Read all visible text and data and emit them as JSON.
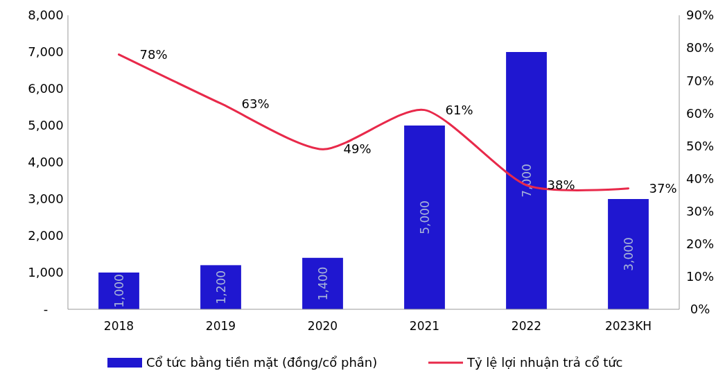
{
  "chart_data": {
    "type": "bar",
    "categories": [
      "2018",
      "2019",
      "2020",
      "2021",
      "2022",
      "2023KH"
    ],
    "series": [
      {
        "name": "Cổ tức bằng tiền mặt (đồng/cổ phần)",
        "color": "#1f17d0",
        "values": [
          1000,
          1200,
          1400,
          5000,
          7000,
          3000
        ],
        "value_labels": [
          "1,000",
          "1,200",
          "1,400",
          "5,000",
          "7,000",
          "3,000"
        ]
      },
      {
        "name": "Tỷ lệ lợi nhuận trả cổ tức",
        "type": "line",
        "axis": "y2",
        "color": "#e8294a",
        "values": [
          78,
          63,
          49,
          61,
          38,
          37
        ],
        "value_labels": [
          "78%",
          "63%",
          "49%",
          "61%",
          "38%",
          "37%"
        ]
      }
    ],
    "ylim": [
      0,
      8000
    ],
    "yticks": [
      {
        "value": 0,
        "label": "-"
      },
      {
        "value": 1000,
        "label": "1,000"
      },
      {
        "value": 2000,
        "label": "2,000"
      },
      {
        "value": 3000,
        "label": "3,000"
      },
      {
        "value": 4000,
        "label": "4,000"
      },
      {
        "value": 5000,
        "label": "5,000"
      },
      {
        "value": 6000,
        "label": "6,000"
      },
      {
        "value": 7000,
        "label": "7,000"
      },
      {
        "value": 8000,
        "label": "8,000"
      }
    ],
    "y2lim": [
      0,
      90
    ],
    "y2ticks": [
      {
        "value": 0,
        "label": "0%"
      },
      {
        "value": 10,
        "label": "10%"
      },
      {
        "value": 20,
        "label": "20%"
      },
      {
        "value": 30,
        "label": "30%"
      },
      {
        "value": 40,
        "label": "40%"
      },
      {
        "value": 50,
        "label": "50%"
      },
      {
        "value": 60,
        "label": "60%"
      },
      {
        "value": 70,
        "label": "70%"
      },
      {
        "value": 80,
        "label": "80%"
      },
      {
        "value": 90,
        "label": "90%"
      }
    ],
    "legend": "bottom",
    "marker": "none",
    "line_style": "solid"
  }
}
